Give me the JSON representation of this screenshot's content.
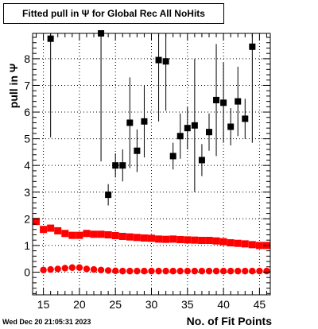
{
  "title": "Fitted pull in Ψ for Global Rec All NoHits",
  "ylabel": "pull in Ψ",
  "xlabel": "No. of Fit Points",
  "timestamp": "Wed Dec 20 21:05:31 2023",
  "colors": {
    "black_series": "#000000",
    "red_series": "#ff0000",
    "grid": "#000000",
    "frame": "#000000"
  },
  "chart_data": {
    "type": "scatter",
    "title": "Fitted pull in Ψ for Global Rec All NoHits",
    "xlabel": "No. of Fit Points",
    "ylabel": "pull in Ψ",
    "xlim": [
      13.5,
      46.5
    ],
    "ylim": [
      -0.85,
      8.95
    ],
    "grid": true,
    "legend": "none",
    "x_ticks": [
      15,
      20,
      25,
      30,
      35,
      40,
      45
    ],
    "y_ticks": [
      0,
      1,
      2,
      3,
      4,
      5,
      6,
      7,
      8
    ],
    "series": [
      {
        "marker": "square",
        "color": "#000000",
        "points": [
          {
            "x": 16,
            "y": 8.75,
            "err": 3.7
          },
          {
            "x": 23,
            "y": 8.95,
            "err": 4.8
          },
          {
            "x": 24,
            "y": 2.9,
            "err": 0.4
          },
          {
            "x": 25,
            "y": 4.0,
            "err": 0.45
          },
          {
            "x": 26,
            "y": 4.0,
            "err": 0.6
          },
          {
            "x": 27,
            "y": 5.6,
            "err": 1.7
          },
          {
            "x": 28,
            "y": 4.55,
            "err": 0.8
          },
          {
            "x": 29,
            "y": 5.65,
            "err": 1.35
          },
          {
            "x": 31,
            "y": 7.95,
            "err": 2.3
          },
          {
            "x": 32,
            "y": 7.9,
            "err": 1.85
          },
          {
            "x": 33,
            "y": 4.35,
            "err": 0.5
          },
          {
            "x": 34,
            "y": 5.1,
            "err": 0.85
          },
          {
            "x": 35,
            "y": 5.4,
            "err": 0.8
          },
          {
            "x": 36,
            "y": 5.5,
            "err": 2.5
          },
          {
            "x": 37,
            "y": 4.2,
            "err": 0.6
          },
          {
            "x": 38,
            "y": 5.25,
            "err": 0.7
          },
          {
            "x": 39,
            "y": 6.45,
            "err": 2.1
          },
          {
            "x": 40,
            "y": 6.35,
            "err": 1.5
          },
          {
            "x": 41,
            "y": 5.45,
            "err": 0.7
          },
          {
            "x": 42,
            "y": 6.4,
            "err": 1.3
          },
          {
            "x": 43,
            "y": 5.75,
            "err": 0.75
          },
          {
            "x": 44,
            "y": 8.45,
            "err": 3.6
          }
        ]
      },
      {
        "marker": "square",
        "color": "#ff0000",
        "points": [
          {
            "x": 14,
            "y": 1.9,
            "err": 0.05
          },
          {
            "x": 15,
            "y": 1.6,
            "err": 0.05
          },
          {
            "x": 16,
            "y": 1.65,
            "err": 0.05
          },
          {
            "x": 17,
            "y": 1.55,
            "err": 0.05
          },
          {
            "x": 18,
            "y": 1.45,
            "err": 0.05
          },
          {
            "x": 19,
            "y": 1.38,
            "err": 0.05
          },
          {
            "x": 20,
            "y": 1.38,
            "err": 0.05
          },
          {
            "x": 21,
            "y": 1.45,
            "err": 0.05
          },
          {
            "x": 22,
            "y": 1.42,
            "err": 0.05
          },
          {
            "x": 23,
            "y": 1.42,
            "err": 0.05
          },
          {
            "x": 24,
            "y": 1.4,
            "err": 0.05
          },
          {
            "x": 25,
            "y": 1.37,
            "err": 0.05
          },
          {
            "x": 26,
            "y": 1.34,
            "err": 0.05
          },
          {
            "x": 27,
            "y": 1.32,
            "err": 0.05
          },
          {
            "x": 28,
            "y": 1.3,
            "err": 0.05
          },
          {
            "x": 29,
            "y": 1.28,
            "err": 0.05
          },
          {
            "x": 30,
            "y": 1.27,
            "err": 0.05
          },
          {
            "x": 31,
            "y": 1.24,
            "err": 0.05
          },
          {
            "x": 32,
            "y": 1.23,
            "err": 0.05
          },
          {
            "x": 33,
            "y": 1.24,
            "err": 0.05
          },
          {
            "x": 34,
            "y": 1.22,
            "err": 0.05
          },
          {
            "x": 35,
            "y": 1.21,
            "err": 0.05
          },
          {
            "x": 36,
            "y": 1.2,
            "err": 0.05
          },
          {
            "x": 37,
            "y": 1.19,
            "err": 0.05
          },
          {
            "x": 38,
            "y": 1.19,
            "err": 0.05
          },
          {
            "x": 39,
            "y": 1.17,
            "err": 0.05
          },
          {
            "x": 40,
            "y": 1.14,
            "err": 0.05
          },
          {
            "x": 41,
            "y": 1.1,
            "err": 0.05
          },
          {
            "x": 42,
            "y": 1.08,
            "err": 0.05
          },
          {
            "x": 43,
            "y": 1.06,
            "err": 0.05
          },
          {
            "x": 44,
            "y": 1.03,
            "err": 0.05
          },
          {
            "x": 45,
            "y": 1.0,
            "err": 0.05
          },
          {
            "x": 46,
            "y": 1.0,
            "err": 0.05
          }
        ]
      },
      {
        "marker": "circle",
        "color": "#ff0000",
        "points": [
          {
            "x": 15,
            "y": 0.08
          },
          {
            "x": 16,
            "y": 0.1
          },
          {
            "x": 17,
            "y": 0.12
          },
          {
            "x": 18,
            "y": 0.15
          },
          {
            "x": 19,
            "y": 0.17
          },
          {
            "x": 20,
            "y": 0.17
          },
          {
            "x": 21,
            "y": 0.12
          },
          {
            "x": 22,
            "y": 0.1
          },
          {
            "x": 23,
            "y": 0.08
          },
          {
            "x": 24,
            "y": 0.06
          },
          {
            "x": 25,
            "y": 0.05
          },
          {
            "x": 26,
            "y": 0.04
          },
          {
            "x": 27,
            "y": 0.04
          },
          {
            "x": 28,
            "y": 0.04
          },
          {
            "x": 29,
            "y": 0.04
          },
          {
            "x": 30,
            "y": 0.04
          },
          {
            "x": 31,
            "y": 0.04
          },
          {
            "x": 32,
            "y": 0.04
          },
          {
            "x": 33,
            "y": 0.04
          },
          {
            "x": 34,
            "y": 0.04
          },
          {
            "x": 35,
            "y": 0.04
          },
          {
            "x": 36,
            "y": 0.04
          },
          {
            "x": 37,
            "y": 0.04
          },
          {
            "x": 38,
            "y": 0.04
          },
          {
            "x": 39,
            "y": 0.04
          },
          {
            "x": 40,
            "y": 0.04
          },
          {
            "x": 41,
            "y": 0.04
          },
          {
            "x": 42,
            "y": 0.04
          },
          {
            "x": 43,
            "y": 0.04
          },
          {
            "x": 44,
            "y": 0.04
          },
          {
            "x": 45,
            "y": 0.04
          },
          {
            "x": 46,
            "y": 0.04
          }
        ]
      }
    ]
  }
}
